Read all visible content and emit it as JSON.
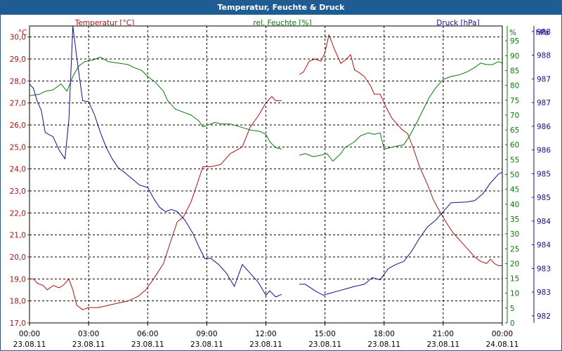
{
  "window": {
    "title": "Temperatur, Feuchte & Druck"
  },
  "chart_data": {
    "type": "line",
    "title": "Temperatur, Feuchte & Druck",
    "xlim": [
      "23.08.11 00:00",
      "24.08.11 00:00"
    ],
    "x_ticks": [
      {
        "time": "00:00",
        "date": "23.08.11"
      },
      {
        "time": "03:00",
        "date": "23.08.11"
      },
      {
        "time": "06:00",
        "date": "23.08.11"
      },
      {
        "time": "09:00",
        "date": "23.08.11"
      },
      {
        "time": "12:00",
        "date": "23.08.11"
      },
      {
        "time": "15:00",
        "date": "23.08.11"
      },
      {
        "time": "18:00",
        "date": "23.08.11"
      },
      {
        "time": "21:00",
        "date": "23.08.11"
      },
      {
        "time": "00:00",
        "date": "24.08.11"
      }
    ],
    "grid": true,
    "legend": "top",
    "axes": {
      "temp": {
        "label": "Temperatur [°C]",
        "unit": "°C",
        "color": "#b01010",
        "ylim": [
          17.0,
          30.5
        ],
        "ticks": [
          "17,0",
          "18,0",
          "19,0",
          "20,0",
          "21,0",
          "22,0",
          "23,0",
          "24,0",
          "25,0",
          "26,0",
          "27,0",
          "28,0",
          "29,0",
          "30,0"
        ]
      },
      "hum": {
        "label": "rel. Feuchte [%]",
        "unit": "%",
        "color": "#0a7a0a",
        "ylim": [
          0,
          100
        ],
        "ticks": [
          "0",
          "5",
          "10",
          "15",
          "20",
          "25",
          "30",
          "35",
          "40",
          "45",
          "50",
          "55",
          "60",
          "65",
          "70",
          "75",
          "80",
          "85",
          "90",
          "95"
        ]
      },
      "press": {
        "label": "Druck [hPa]",
        "unit": "hPa",
        "color": "#10108f",
        "ylim": [
          981.67,
          988.42
        ],
        "ticks": [
          "982",
          "983",
          "983",
          "984",
          "984",
          "985",
          "985",
          "986",
          "986",
          "987",
          "987",
          "988",
          "988"
        ]
      }
    },
    "series": [
      {
        "name": "Temperatur [°C]",
        "axis": "temp",
        "color": "#b01010",
        "segments": [
          [
            [
              0.0,
              19.0
            ],
            [
              0.2,
              19.0
            ],
            [
              0.4,
              18.8
            ],
            [
              0.7,
              18.7
            ],
            [
              0.9,
              18.5
            ],
            [
              1.2,
              18.7
            ],
            [
              1.5,
              18.6
            ],
            [
              1.7,
              18.7
            ],
            [
              1.9,
              18.9
            ],
            [
              2.0,
              19.0
            ],
            [
              2.2,
              18.5
            ],
            [
              2.4,
              17.8
            ],
            [
              2.7,
              17.6
            ],
            [
              3.0,
              17.7
            ],
            [
              3.5,
              17.7
            ],
            [
              4.0,
              17.8
            ],
            [
              4.5,
              17.9
            ],
            [
              5.0,
              18.0
            ],
            [
              5.5,
              18.2
            ],
            [
              5.9,
              18.5
            ],
            [
              6.3,
              19.0
            ],
            [
              6.8,
              19.7
            ],
            [
              7.2,
              20.8
            ],
            [
              7.5,
              21.6
            ],
            [
              7.8,
              21.8
            ],
            [
              8.2,
              22.5
            ],
            [
              8.5,
              23.3
            ],
            [
              8.8,
              24.1
            ],
            [
              9.2,
              24.1
            ],
            [
              9.7,
              24.2
            ],
            [
              10.2,
              24.7
            ],
            [
              10.8,
              25.0
            ],
            [
              11.2,
              25.9
            ],
            [
              11.6,
              26.4
            ],
            [
              12.0,
              27.0
            ],
            [
              12.3,
              27.3
            ],
            [
              12.5,
              27.1
            ],
            [
              12.8,
              27.1
            ]
          ],
          [
            [
              13.7,
              28.3
            ],
            [
              13.9,
              28.4
            ],
            [
              14.2,
              28.9
            ],
            [
              14.5,
              29.0
            ],
            [
              14.8,
              28.9
            ],
            [
              15.0,
              29.3
            ],
            [
              15.2,
              30.1
            ],
            [
              15.5,
              29.4
            ],
            [
              15.8,
              28.8
            ],
            [
              16.1,
              29.0
            ],
            [
              16.3,
              29.2
            ],
            [
              16.5,
              28.5
            ],
            [
              16.7,
              28.4
            ],
            [
              17.0,
              28.2
            ],
            [
              17.3,
              27.8
            ],
            [
              17.5,
              27.4
            ],
            [
              17.8,
              27.4
            ],
            [
              18.1,
              26.8
            ],
            [
              18.4,
              26.3
            ],
            [
              18.9,
              25.8
            ],
            [
              19.2,
              25.6
            ],
            [
              19.5,
              24.9
            ],
            [
              19.8,
              24.1
            ],
            [
              20.2,
              23.3
            ],
            [
              20.5,
              22.6
            ],
            [
              20.8,
              22.1
            ],
            [
              21.2,
              21.5
            ],
            [
              21.5,
              21.1
            ],
            [
              21.9,
              20.7
            ],
            [
              22.3,
              20.3
            ],
            [
              22.6,
              20.0
            ],
            [
              22.9,
              19.8
            ],
            [
              23.2,
              19.7
            ],
            [
              23.4,
              19.9
            ],
            [
              23.6,
              19.7
            ],
            [
              23.8,
              19.6
            ],
            [
              24.0,
              19.6
            ]
          ]
        ]
      },
      {
        "name": "rel. Feuchte [%]",
        "axis": "hum",
        "color": "#0a7a0a",
        "segments": [
          [
            [
              0.0,
              76.5
            ],
            [
              0.5,
              77.0
            ],
            [
              0.8,
              78.0
            ],
            [
              1.2,
              78.5
            ],
            [
              1.6,
              80.5
            ],
            [
              1.9,
              78.0
            ],
            [
              2.2,
              83.0
            ],
            [
              2.5,
              86.5
            ],
            [
              2.8,
              88.0
            ],
            [
              3.2,
              88.5
            ],
            [
              3.6,
              89.5
            ],
            [
              4.0,
              88.0
            ],
            [
              4.5,
              87.5
            ],
            [
              5.0,
              87.0
            ],
            [
              5.3,
              86.0
            ],
            [
              5.7,
              85.0
            ],
            [
              6.0,
              83.0
            ],
            [
              6.4,
              81.0
            ],
            [
              6.8,
              78.0
            ],
            [
              7.0,
              75.0
            ],
            [
              7.4,
              72.0
            ],
            [
              7.8,
              71.0
            ],
            [
              8.2,
              70.0
            ],
            [
              8.6,
              68.0
            ],
            [
              8.8,
              66.0
            ],
            [
              9.0,
              66.5
            ],
            [
              9.4,
              67.5
            ],
            [
              9.8,
              67.0
            ],
            [
              10.2,
              67.0
            ],
            [
              10.7,
              66.0
            ],
            [
              11.2,
              65.0
            ],
            [
              11.7,
              64.5
            ],
            [
              12.0,
              63.5
            ],
            [
              12.2,
              61.0
            ],
            [
              12.5,
              59.0
            ],
            [
              12.8,
              58.5
            ]
          ],
          [
            [
              13.7,
              56.5
            ],
            [
              14.0,
              57.0
            ],
            [
              14.4,
              56.0
            ],
            [
              14.8,
              56.5
            ],
            [
              15.1,
              57.0
            ],
            [
              15.4,
              54.5
            ],
            [
              15.8,
              57.0
            ],
            [
              16.0,
              59.0
            ],
            [
              16.5,
              61.0
            ],
            [
              16.8,
              63.0
            ],
            [
              17.2,
              64.0
            ],
            [
              17.5,
              63.5
            ],
            [
              17.8,
              64.0
            ],
            [
              18.0,
              58.5
            ],
            [
              18.3,
              59.0
            ],
            [
              18.6,
              59.5
            ],
            [
              19.0,
              60.0
            ],
            [
              19.3,
              63.0
            ],
            [
              19.7,
              68.0
            ],
            [
              20.0,
              72.0
            ],
            [
              20.3,
              76.0
            ],
            [
              20.6,
              79.0
            ],
            [
              21.0,
              82.0
            ],
            [
              21.4,
              83.0
            ],
            [
              21.8,
              83.5
            ],
            [
              22.2,
              84.5
            ],
            [
              22.6,
              86.0
            ],
            [
              22.9,
              87.5
            ],
            [
              23.2,
              87.0
            ],
            [
              23.5,
              87.0
            ],
            [
              23.8,
              88.0
            ],
            [
              24.0,
              87.5
            ]
          ]
        ]
      },
      {
        "name": "Druck [hPa]",
        "axis": "press",
        "color": "#10108f",
        "segments": [
          [
            [
              0.0,
              987.1
            ],
            [
              0.2,
              987.0
            ],
            [
              0.4,
              986.7
            ],
            [
              0.6,
              986.5
            ],
            [
              0.8,
              986.0
            ],
            [
              1.0,
              985.95
            ],
            [
              1.2,
              985.9
            ],
            [
              1.5,
              985.6
            ],
            [
              1.8,
              985.4
            ],
            [
              2.0,
              986.3
            ],
            [
              2.2,
              988.42
            ],
            [
              2.4,
              987.7
            ],
            [
              2.7,
              986.72
            ],
            [
              3.0,
              986.7
            ],
            [
              3.3,
              986.4
            ],
            [
              3.6,
              986.0
            ],
            [
              3.9,
              985.65
            ],
            [
              4.2,
              985.4
            ],
            [
              4.5,
              985.2
            ],
            [
              4.8,
              985.1
            ],
            [
              5.2,
              984.95
            ],
            [
              5.6,
              984.8
            ],
            [
              6.0,
              984.75
            ],
            [
              6.3,
              984.5
            ],
            [
              6.6,
              984.3
            ],
            [
              6.9,
              984.2
            ],
            [
              7.2,
              984.25
            ],
            [
              7.5,
              984.2
            ],
            [
              7.9,
              984.0
            ],
            [
              8.3,
              983.7
            ],
            [
              8.6,
              983.4
            ],
            [
              8.9,
              983.13
            ],
            [
              9.2,
              983.14
            ],
            [
              9.6,
              983.0
            ],
            [
              10.0,
              982.8
            ],
            [
              10.4,
              982.5
            ],
            [
              10.8,
              983.0
            ],
            [
              11.2,
              982.8
            ],
            [
              11.6,
              982.6
            ],
            [
              12.0,
              982.3
            ],
            [
              12.2,
              982.4
            ],
            [
              12.5,
              982.26
            ],
            [
              12.8,
              982.32
            ]
          ],
          [
            [
              13.7,
              982.55
            ],
            [
              14.0,
              982.55
            ],
            [
              14.5,
              982.4
            ],
            [
              14.9,
              982.3
            ],
            [
              15.3,
              982.35
            ],
            [
              15.7,
              982.4
            ],
            [
              16.1,
              982.45
            ],
            [
              16.5,
              982.5
            ],
            [
              17.0,
              982.55
            ],
            [
              17.4,
              982.7
            ],
            [
              17.8,
              982.65
            ],
            [
              18.2,
              982.9
            ],
            [
              18.6,
              983.0
            ],
            [
              19.0,
              983.07
            ],
            [
              19.4,
              983.3
            ],
            [
              19.8,
              983.6
            ],
            [
              20.2,
              983.85
            ],
            [
              20.6,
              984.0
            ],
            [
              21.0,
              984.2
            ],
            [
              21.4,
              984.4
            ],
            [
              21.8,
              984.41
            ],
            [
              22.2,
              984.42
            ],
            [
              22.6,
              984.45
            ],
            [
              23.0,
              984.6
            ],
            [
              23.4,
              984.85
            ],
            [
              23.8,
              985.05
            ],
            [
              24.0,
              985.1
            ]
          ]
        ]
      }
    ]
  }
}
